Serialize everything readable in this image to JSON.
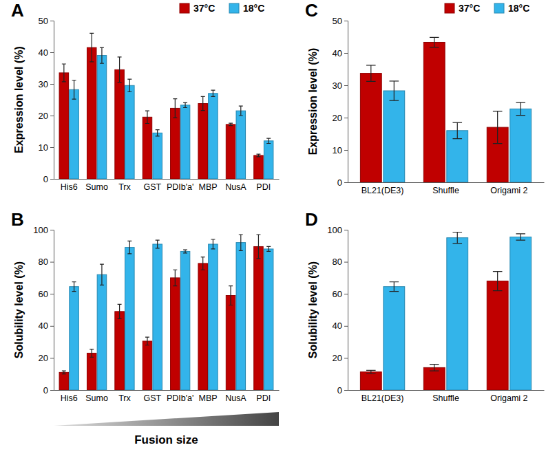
{
  "chart_data": [
    {
      "type": "bar",
      "title": "A",
      "ylabel": "Expression level (%)",
      "categories": [
        "His6",
        "Sumo",
        "Trx",
        "GST",
        "PDIb'a'",
        "MBP",
        "NusA",
        "PDI"
      ],
      "series": [
        {
          "name": "37°C",
          "color": "#c00000",
          "values": [
            33.5,
            41.5,
            34.5,
            19.5,
            22.3,
            23.8,
            17.2,
            7.4
          ],
          "errors": [
            2.8,
            4.5,
            4.0,
            2.0,
            3.0,
            2.2,
            0.4,
            0.4
          ]
        },
        {
          "name": "18°C",
          "color": "#33b4ea",
          "values": [
            28.2,
            39.0,
            29.5,
            14.5,
            23.3,
            27.0,
            21.5,
            12.0
          ],
          "errors": [
            3.0,
            2.5,
            2.0,
            1.0,
            0.8,
            1.0,
            1.5,
            0.8
          ]
        }
      ],
      "ylim": [
        0,
        50
      ],
      "yticks": [
        0,
        10,
        20,
        30,
        40,
        50
      ],
      "legend": "top-right"
    },
    {
      "type": "bar",
      "title": "B",
      "ylabel": "Solubility level (%)",
      "xlabel": "Fusion size",
      "categories": [
        "His6",
        "Sumo",
        "Trx",
        "GST",
        "PDIb'a'",
        "MBP",
        "NusA",
        "PDI"
      ],
      "series": [
        {
          "color": "#c00000",
          "values": [
            11.0,
            23.0,
            49.0,
            30.5,
            70.0,
            79.0,
            59.0,
            89.5
          ],
          "errors": [
            1.0,
            2.5,
            4.5,
            2.5,
            5.0,
            4.0,
            6.0,
            7.5
          ]
        },
        {
          "color": "#33b4ea",
          "values": [
            64.5,
            72.0,
            89.0,
            91.0,
            86.5,
            91.0,
            92.0,
            88.0
          ],
          "errors": [
            3.0,
            6.5,
            4.0,
            2.5,
            1.0,
            3.0,
            5.0,
            1.5
          ]
        }
      ],
      "ylim": [
        0,
        100
      ],
      "yticks": [
        0,
        20,
        40,
        60,
        80,
        100
      ]
    },
    {
      "type": "bar",
      "title": "C",
      "ylabel": "Expression level (%)",
      "categories": [
        "BL21(DE3)",
        "Shuffle",
        "Origami 2"
      ],
      "series": [
        {
          "name": "37°C",
          "color": "#c00000",
          "values": [
            33.7,
            43.3,
            17.0
          ],
          "errors": [
            2.5,
            1.5,
            5.0
          ]
        },
        {
          "name": "18°C",
          "color": "#33b4ea",
          "values": [
            28.3,
            16.0,
            22.7
          ],
          "errors": [
            3.0,
            2.5,
            2.0
          ]
        }
      ],
      "ylim": [
        0,
        50
      ],
      "yticks": [
        0,
        10,
        20,
        30,
        40,
        50
      ],
      "legend": "top-right"
    },
    {
      "type": "bar",
      "title": "D",
      "ylabel": "Solubility level (%)",
      "categories": [
        "BL21(DE3)",
        "Shuffle",
        "Origami 2"
      ],
      "series": [
        {
          "color": "#c00000",
          "values": [
            11.3,
            14.0,
            68.0
          ],
          "errors": [
            1.0,
            2.0,
            6.0
          ]
        },
        {
          "color": "#33b4ea",
          "values": [
            64.5,
            95.0,
            95.5
          ],
          "errors": [
            3.0,
            3.5,
            2.0
          ]
        }
      ],
      "ylim": [
        0,
        100
      ],
      "yticks": [
        0,
        20,
        40,
        60,
        80,
        100
      ]
    }
  ]
}
